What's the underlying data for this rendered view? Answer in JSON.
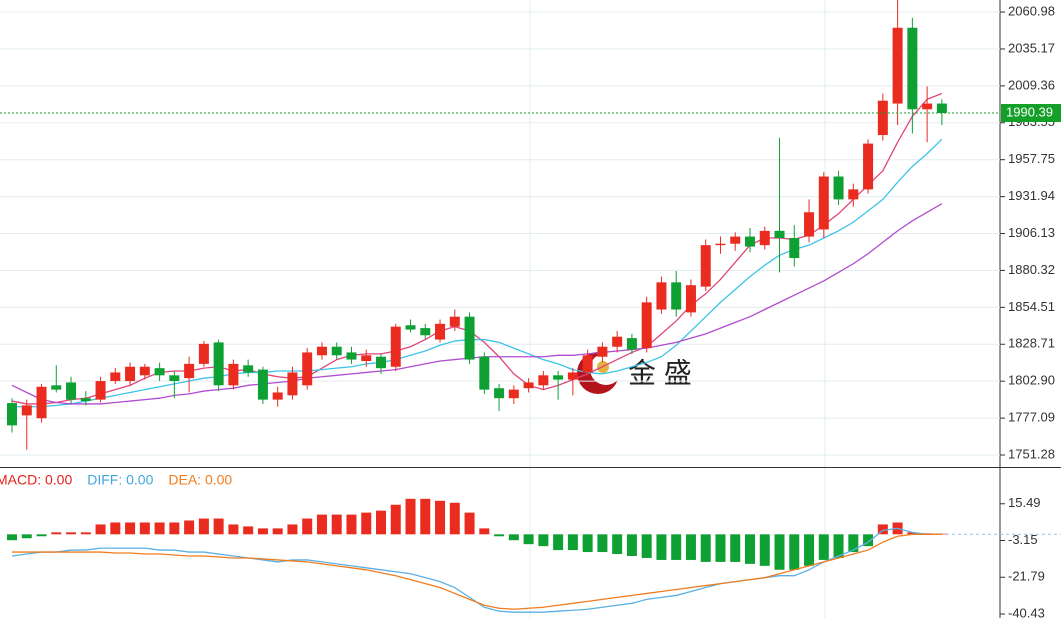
{
  "chart_data": [
    {
      "type": "candlestick",
      "up_color": "#ea2b1f",
      "down_color": "#0fa034",
      "grid": true,
      "last_price": 1990.39,
      "last_color": "#14a028",
      "watermark": "金 盛",
      "ylim": [
        1742.9,
        2069.4
      ],
      "yticks": [
        2060.98,
        2035.17,
        2009.36,
        1983.55,
        1957.75,
        1931.94,
        1906.13,
        1880.32,
        1854.51,
        1828.71,
        {
          "value": 1802.9,
          "label": "1802.90"
        },
        1777.09,
        1751.28
      ],
      "open": [
        1787.6,
        1779,
        1777,
        1800,
        1802,
        1791,
        1790,
        1803,
        1803,
        1807,
        1812,
        1807,
        1805,
        1815,
        1830,
        1800,
        1814,
        1811,
        1790,
        1793,
        1800,
        1821,
        1827,
        1823,
        1817,
        1820,
        1813,
        1842,
        1840,
        1832,
        1841,
        1848,
        1820,
        1798,
        1791,
        1798,
        1800,
        1807,
        1804,
        1809,
        1820,
        1827,
        1833,
        1826,
        1853,
        1872,
        1851,
        1869,
        1898,
        1899,
        1904,
        1898,
        1908,
        1903,
        1904,
        1909,
        1946,
        1930,
        1937,
        1975,
        1997,
        2050,
        1993,
        1997
      ],
      "high": [
        1791,
        1790,
        1801,
        1814,
        1806,
        1796,
        1806,
        1812,
        1816,
        1815,
        1816,
        1810,
        1820,
        1831,
        1832,
        1818,
        1818,
        1813,
        1799,
        1813,
        1826,
        1830,
        1830,
        1827,
        1825,
        1822,
        1843,
        1846,
        1843,
        1846,
        1853,
        1851,
        1823,
        1801,
        1800,
        1805,
        1810,
        1810,
        1812,
        1825,
        1830,
        1838,
        1836,
        1862,
        1876,
        1880,
        1874,
        1902,
        1904,
        1907,
        1910,
        1911,
        1973,
        1912,
        1930,
        1949,
        1950,
        1941,
        1972,
        2004,
        2070,
        2057,
        2009,
        2000
      ],
      "low": [
        1767,
        1755,
        1774,
        1795,
        1787,
        1786,
        1788,
        1801,
        1800,
        1804,
        1803,
        1791,
        1795,
        1813,
        1796,
        1797,
        1806,
        1787,
        1785,
        1790,
        1797,
        1818,
        1818,
        1815,
        1813,
        1808,
        1810,
        1837,
        1832,
        1830,
        1838,
        1815,
        1794,
        1782,
        1787,
        1795,
        1797,
        1790,
        1793,
        1806,
        1816,
        1823,
        1822,
        1823,
        1850,
        1848,
        1848,
        1866,
        1892,
        1894,
        1893,
        1895,
        1879,
        1883,
        1900,
        1903,
        1926,
        1925,
        1934,
        1971,
        1982,
        1976,
        1970,
        1982
      ],
      "close": [
        1772,
        1786,
        1799,
        1797,
        1790,
        1789,
        1803,
        1809,
        1813,
        1813,
        1807,
        1803,
        1815,
        1829,
        1800,
        1815,
        1809,
        1790,
        1795,
        1809,
        1823,
        1827,
        1821,
        1818,
        1821,
        1812,
        1841,
        1839,
        1835,
        1843,
        1848,
        1818,
        1797,
        1791,
        1797,
        1802,
        1807,
        1804,
        1809,
        1821,
        1827,
        1834,
        1825,
        1858,
        1872,
        1853,
        1870,
        1898,
        1899,
        1904,
        1897,
        1908,
        1903,
        1889,
        1921,
        1946,
        1930,
        1937,
        1969,
        1999,
        2050,
        1993,
        1997,
        1990.39
      ],
      "series": [
        {
          "color": "#e0457b",
          "values": [
            1789,
            1787,
            1787,
            1788,
            1790,
            1791,
            1794,
            1797,
            1800,
            1805,
            1809,
            1810,
            1810,
            1812,
            1813,
            1810,
            1811,
            1808,
            1806,
            1805,
            1806,
            1812,
            1818,
            1821,
            1822,
            1822,
            1824,
            1827,
            1832,
            1838,
            1841,
            1838,
            1830,
            1820,
            1808,
            1800,
            1797,
            1800,
            1804,
            1808,
            1813,
            1818,
            1823,
            1827,
            1836,
            1845,
            1856,
            1864,
            1874,
            1886,
            1898,
            1903,
            1903,
            1902,
            1905,
            1912,
            1920,
            1930,
            1940,
            1950,
            1970,
            1988,
            2000,
            2004
          ]
        },
        {
          "color": "#3cc3e8",
          "values": [
            1785,
            1785,
            1785,
            1786,
            1787,
            1789,
            1791,
            1793,
            1795,
            1797,
            1799,
            1801,
            1803,
            1805,
            1806,
            1808,
            1809,
            1809,
            1810,
            1810,
            1810,
            1811,
            1812,
            1813,
            1815,
            1816,
            1818,
            1821,
            1824,
            1828,
            1831,
            1832,
            1832,
            1830,
            1826,
            1822,
            1818,
            1815,
            1811,
            1809,
            1808,
            1810,
            1813,
            1816,
            1820,
            1828,
            1838,
            1848,
            1858,
            1867,
            1876,
            1884,
            1891,
            1895,
            1898,
            1903,
            1908,
            1914,
            1922,
            1930,
            1942,
            1953,
            1962,
            1972
          ]
        },
        {
          "color": "#b04cd1",
          "values": [
            1800,
            1795,
            1790,
            1788,
            1787,
            1787,
            1787,
            1788,
            1789,
            1790,
            1791,
            1793,
            1794,
            1796,
            1797,
            1798,
            1800,
            1801,
            1802,
            1803,
            1805,
            1806,
            1807,
            1808,
            1809,
            1810,
            1811,
            1813,
            1815,
            1817,
            1818,
            1819,
            1820,
            1820,
            1820,
            1820,
            1820,
            1821,
            1821,
            1822,
            1823,
            1824,
            1825,
            1826,
            1828,
            1830,
            1833,
            1836,
            1840,
            1844,
            1848,
            1853,
            1858,
            1863,
            1868,
            1873,
            1879,
            1885,
            1892,
            1900,
            1908,
            1915,
            1921,
            1927
          ]
        }
      ]
    },
    {
      "type": "macd",
      "ylim": [
        -42.45,
        33.63
      ],
      "yticks": [
        15.49,
        -3.15,
        -21.79,
        -40.43
      ],
      "legend": [
        {
          "text": "MACD: 0.00",
          "color": "#e8211c"
        },
        {
          "text": "DIFF: 0.00",
          "color": "#3ea6e0"
        },
        {
          "text": "DEA: 0.00",
          "color": "#f07c1e"
        }
      ],
      "pos_color": "#ea2b1f",
      "neg_color": "#0fa034",
      "values": [
        -3,
        -2,
        -1,
        1,
        1,
        1,
        5,
        6,
        6,
        6,
        6,
        6,
        7,
        8,
        8,
        5,
        4,
        3,
        3,
        5,
        8,
        10,
        10,
        10,
        11,
        12,
        15,
        18,
        18,
        17,
        16,
        11,
        3,
        -1,
        -3,
        -5,
        -6,
        -8,
        -8,
        -9,
        -9,
        -10,
        -11,
        -12,
        -13,
        -13,
        -13,
        -14,
        -14,
        -14,
        -15,
        -16,
        -18,
        -18,
        -16,
        -13,
        -12,
        -9,
        -6,
        5,
        6,
        1,
        0.5,
        0.3
      ],
      "series": [
        {
          "color": "#5ab0e6",
          "values": [
            -11,
            -10,
            -9,
            -9,
            -8,
            -8,
            -7,
            -7,
            -7,
            -7,
            -8,
            -8,
            -9,
            -9,
            -10,
            -11,
            -12,
            -13,
            -14,
            -13,
            -13,
            -14,
            -15,
            -16,
            -17,
            -18,
            -19,
            -20,
            -22,
            -24,
            -27,
            -32,
            -37,
            -39,
            -39.5,
            -39.5,
            -39.5,
            -39,
            -38.5,
            -38,
            -37,
            -36,
            -35,
            -33,
            -32,
            -31,
            -29,
            -27,
            -25,
            -24,
            -23,
            -22,
            -21,
            -21,
            -18,
            -14,
            -11,
            -8,
            -4,
            2,
            3,
            1,
            0,
            0
          ]
        },
        {
          "color": "#f07c1e",
          "values": [
            -9,
            -9,
            -9,
            -9,
            -9,
            -9,
            -9,
            -9.5,
            -9.5,
            -10,
            -10,
            -10.5,
            -11,
            -11,
            -11.5,
            -12,
            -12,
            -12.5,
            -13,
            -13.5,
            -14,
            -15,
            -16,
            -17,
            -18,
            -19.5,
            -21,
            -23,
            -25,
            -27,
            -30,
            -33,
            -36,
            -37.5,
            -38,
            -37.5,
            -37,
            -36,
            -35,
            -34,
            -33,
            -32,
            -31,
            -30,
            -29,
            -28,
            -27,
            -26,
            -25,
            -24,
            -23,
            -22,
            -20,
            -18,
            -16,
            -14,
            -12,
            -10,
            -8,
            -4,
            -1,
            0,
            0,
            0
          ]
        }
      ]
    }
  ]
}
